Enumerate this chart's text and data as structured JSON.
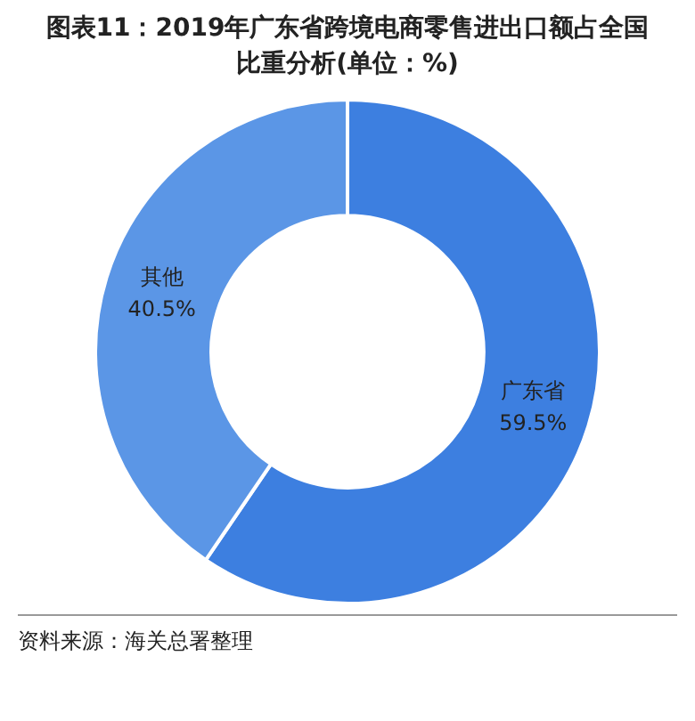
{
  "chart_data": {
    "type": "donut",
    "title": "图表11：2019年广东省跨境电商零售进出口额占全国比重分析(单位：%)",
    "categories": [
      "广东省",
      "其他"
    ],
    "values": [
      59.5,
      40.5
    ],
    "value_labels": [
      "59.5%",
      "40.5%"
    ],
    "colors": [
      "#3d7fe0",
      "#5b96e6"
    ],
    "legend": false,
    "annotations": [
      "资料来源：海关总署整理"
    ]
  }
}
